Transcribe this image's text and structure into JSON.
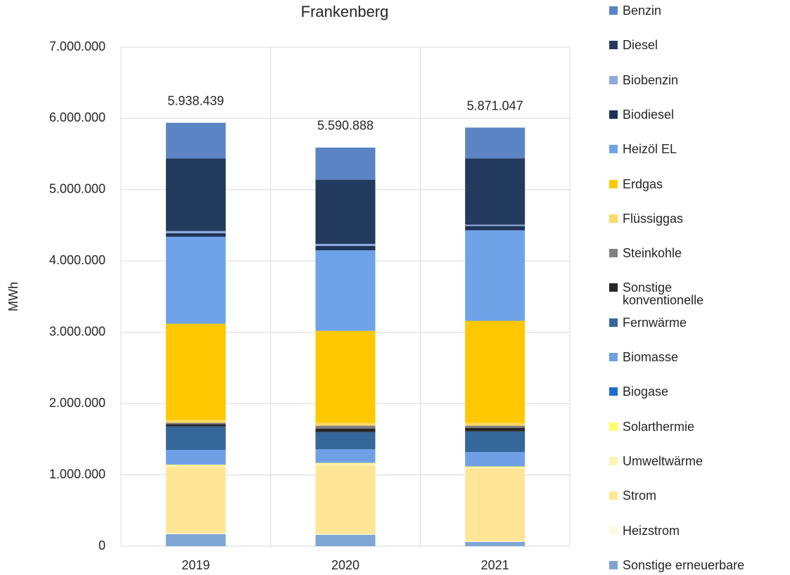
{
  "chart_data": {
    "type": "stacked_bar",
    "title": "Frankenberg",
    "y_label": "MWh",
    "categories": [
      "2019",
      "2020",
      "2021"
    ],
    "series": [
      {
        "name": "Sonstige erneuerbare",
        "color": "#7fa5d4",
        "values": [
          170000,
          160000,
          60000
        ]
      },
      {
        "name": "Heizstrom",
        "color": "#fff8e0",
        "values": [
          10000,
          10000,
          10000
        ]
      },
      {
        "name": "Strom",
        "color": "#ffe696",
        "values": [
          930000,
          960000,
          1020000
        ]
      },
      {
        "name": "Umweltwärme",
        "color": "#fff2b3",
        "values": [
          25000,
          30000,
          20000
        ]
      },
      {
        "name": "Solarthermie",
        "color": "#ffff66",
        "values": [
          10000,
          10000,
          10000
        ]
      },
      {
        "name": "Biogase",
        "color": "#1f6bd0",
        "values": [
          5000,
          5000,
          5000
        ]
      },
      {
        "name": "Biomasse",
        "color": "#6fa0e6",
        "values": [
          200000,
          185000,
          195000
        ]
      },
      {
        "name": "Fernwärme",
        "color": "#35679a",
        "values": [
          330000,
          240000,
          290000
        ]
      },
      {
        "name": "Sonstige konventionelle",
        "color": "#262626",
        "values": [
          30000,
          50000,
          50000
        ]
      },
      {
        "name": "Steinkohle",
        "color": "#808080",
        "values": [
          20000,
          40000,
          30000
        ]
      },
      {
        "name": "Flüssiggas",
        "color": "#ffd966",
        "values": [
          40000,
          40000,
          40000
        ]
      },
      {
        "name": "Erdgas",
        "color": "#ffc800",
        "values": [
          1350000,
          1290000,
          1430000
        ]
      },
      {
        "name": "Heizöl EL",
        "color": "#6ea3e8",
        "values": [
          1220000,
          1130000,
          1270000
        ]
      },
      {
        "name": "Biodiesel",
        "color": "#1f3358",
        "values": [
          50000,
          60000,
          60000
        ]
      },
      {
        "name": "Biobenzin",
        "color": "#8faadc",
        "values": [
          30000,
          30000,
          20000
        ]
      },
      {
        "name": "Diesel",
        "color": "#223a5e",
        "values": [
          1020000,
          900000,
          930000
        ]
      },
      {
        "name": "Benzin",
        "color": "#5b84c4",
        "values": [
          498439,
          450888,
          431047
        ]
      }
    ],
    "totals": [
      5938439,
      5590888,
      5871047
    ],
    "total_labels": [
      "5.938.439",
      "5.590.888",
      "5.871.047"
    ],
    "ylim": [
      0,
      7000000
    ],
    "yticks": [
      0,
      {
        "value": 1000000,
        "label": "1.000.000"
      },
      {
        "value": 2000000,
        "label": "2.000.000"
      },
      {
        "value": 3000000,
        "label": "3.000.000"
      },
      {
        "value": 4000000,
        "label": "4.000.000"
      },
      {
        "value": 5000000,
        "label": "5.000.000"
      },
      {
        "value": 6000000,
        "label": "6.000.000"
      },
      {
        "value": 7000000,
        "label": "7.000.000"
      }
    ],
    "grid": true,
    "legend": "right"
  }
}
